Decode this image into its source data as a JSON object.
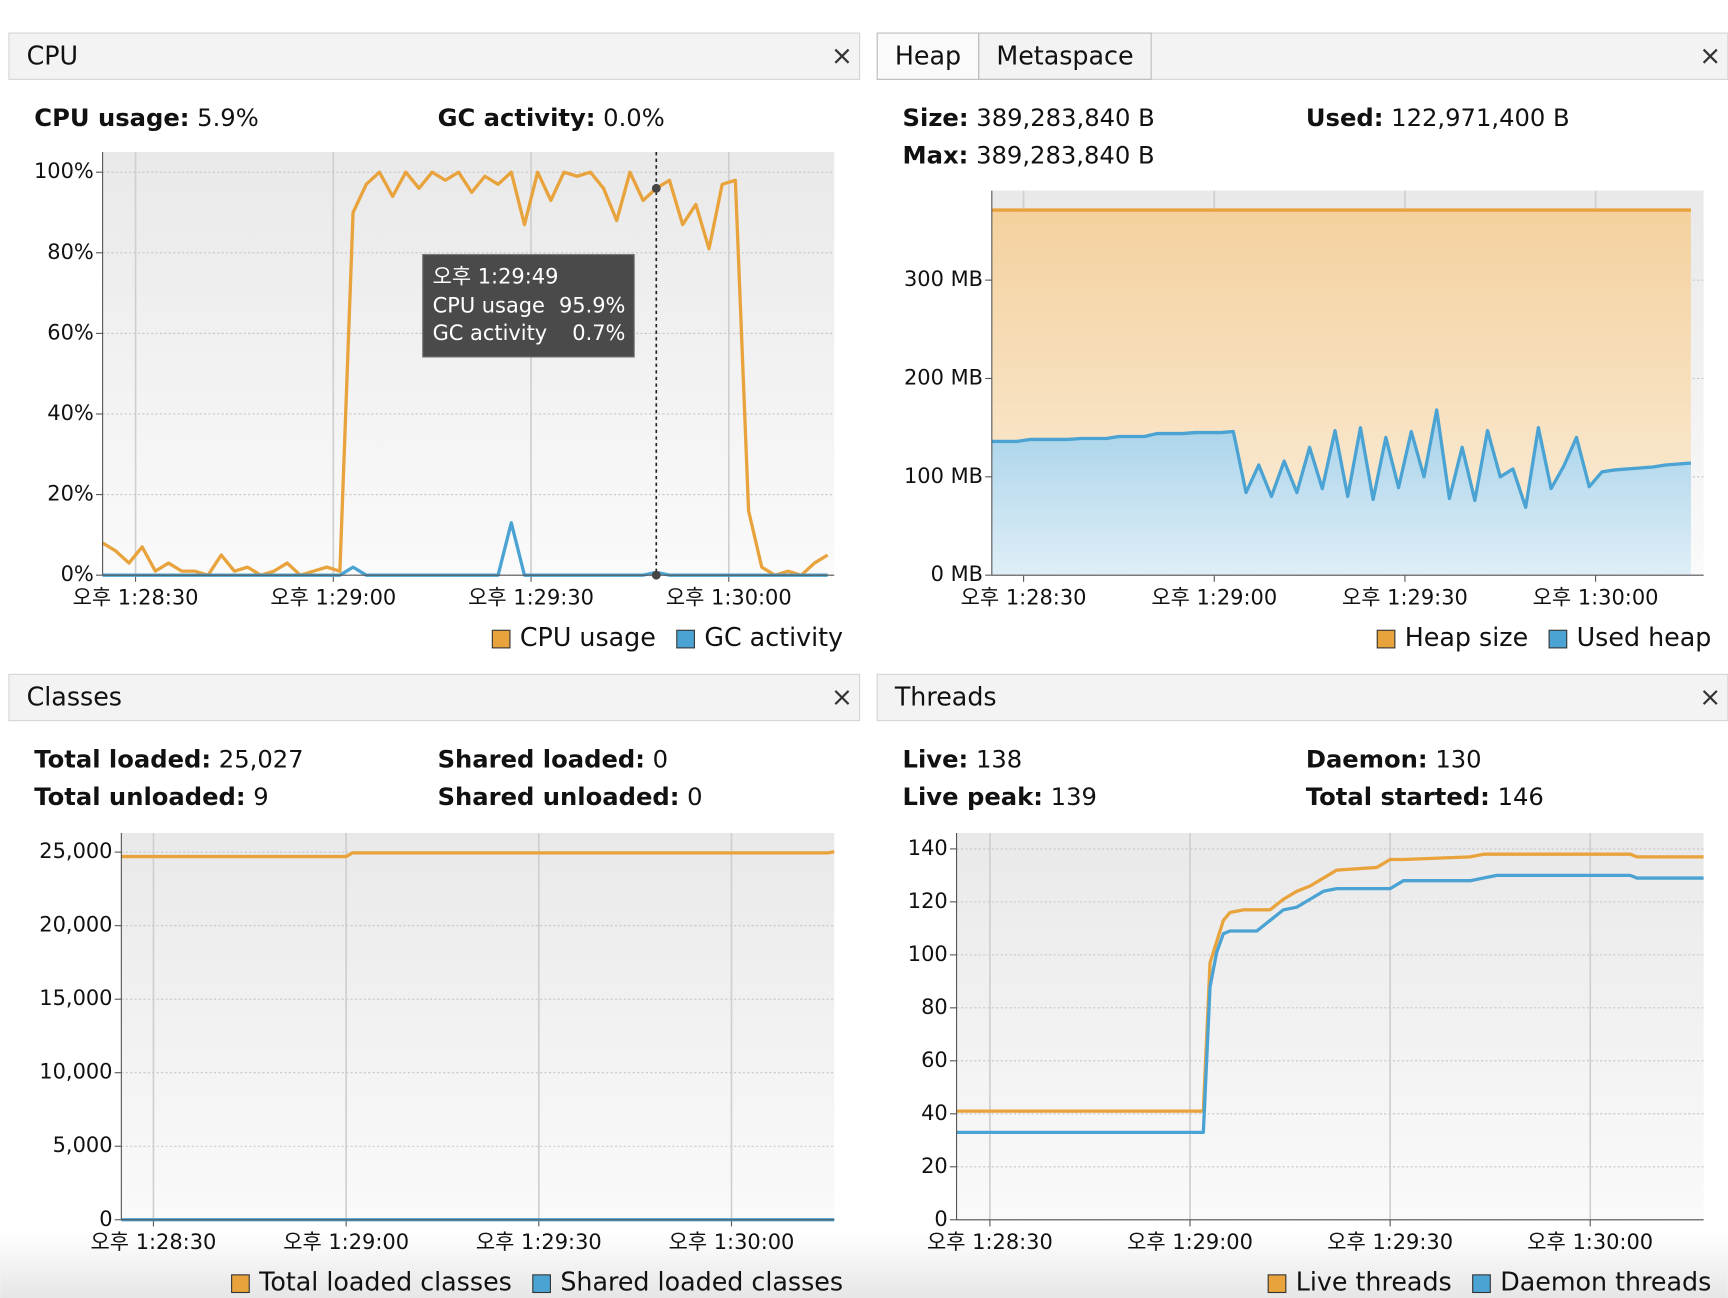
{
  "panels": [
    {
      "tabs": [
        "CPU"
      ],
      "stats": [
        [
          {
            "label": "CPU usage:",
            "value": "5.9%"
          },
          {
            "label": "GC activity:",
            "value": "0.0%"
          }
        ]
      ]
    },
    {
      "tabs": [
        "Heap",
        "Metaspace"
      ],
      "stats": [
        [
          {
            "label": "Size:",
            "value": "389,283,840 B"
          },
          {
            "label": "Used:",
            "value": "122,971,400 B"
          }
        ],
        [
          {
            "label": "Max:",
            "value": "389,283,840 B"
          }
        ]
      ]
    },
    {
      "tabs": [
        "Classes"
      ],
      "stats": [
        [
          {
            "label": "Total loaded:",
            "value": "25,027"
          },
          {
            "label": "Shared loaded:",
            "value": "0"
          }
        ],
        [
          {
            "label": "Total unloaded:",
            "value": "9"
          },
          {
            "label": "Shared unloaded:",
            "value": "0"
          }
        ]
      ]
    },
    {
      "tabs": [
        "Threads"
      ],
      "stats": [
        [
          {
            "label": "Live:",
            "value": "138"
          },
          {
            "label": "Daemon:",
            "value": "130"
          }
        ],
        [
          {
            "label": "Live peak:",
            "value": "139"
          },
          {
            "label": "Total started:",
            "value": "146"
          }
        ]
      ]
    }
  ],
  "chart_data": [
    {
      "type": "line",
      "xlim": [
        "1:28:25",
        "1:30:16"
      ],
      "ylim": [
        0,
        105
      ],
      "xticks": [
        {
          "value": "1:28:30",
          "label": "오후 1:28:30"
        },
        {
          "value": "1:29:00",
          "label": "오후 1:29:00"
        },
        {
          "value": "1:29:30",
          "label": "오후 1:29:30"
        },
        {
          "value": "1:30:00",
          "label": "오후 1:30:00"
        }
      ],
      "yticks": [
        {
          "value": 0,
          "label": "0%"
        },
        {
          "value": 20,
          "label": "20%"
        },
        {
          "value": 40,
          "label": "40%"
        },
        {
          "value": 60,
          "label": "60%"
        },
        {
          "value": 80,
          "label": "80%"
        },
        {
          "value": 100,
          "label": "100%"
        }
      ],
      "x": [
        "1:28:25",
        "1:28:27",
        "1:28:29",
        "1:28:31",
        "1:28:33",
        "1:28:35",
        "1:28:37",
        "1:28:39",
        "1:28:41",
        "1:28:43",
        "1:28:45",
        "1:28:47",
        "1:28:49",
        "1:28:51",
        "1:28:53",
        "1:28:55",
        "1:28:57",
        "1:28:59",
        "1:29:01",
        "1:29:03",
        "1:29:05",
        "1:29:07",
        "1:29:09",
        "1:29:11",
        "1:29:13",
        "1:29:15",
        "1:29:17",
        "1:29:19",
        "1:29:21",
        "1:29:23",
        "1:29:25",
        "1:29:27",
        "1:29:29",
        "1:29:31",
        "1:29:33",
        "1:29:35",
        "1:29:37",
        "1:29:39",
        "1:29:41",
        "1:29:43",
        "1:29:45",
        "1:29:47",
        "1:29:49",
        "1:29:51",
        "1:29:53",
        "1:29:55",
        "1:29:57",
        "1:29:59",
        "1:30:01",
        "1:30:03",
        "1:30:05",
        "1:30:07",
        "1:30:09",
        "1:30:11",
        "1:30:13",
        "1:30:15"
      ],
      "series": [
        {
          "name": "CPU usage",
          "color": "#e8a33d",
          "values": [
            8,
            6,
            3,
            7,
            1,
            3,
            1,
            1,
            0,
            5,
            1,
            2,
            0,
            1,
            3,
            0,
            1,
            2,
            1,
            90,
            97,
            100,
            94,
            100,
            96,
            100,
            98,
            100,
            95,
            99,
            97,
            100,
            87,
            100,
            93,
            100,
            99,
            100,
            96,
            88,
            100,
            93,
            96,
            98,
            87,
            92,
            81,
            97,
            98,
            16,
            2,
            0,
            1,
            0,
            3,
            5
          ]
        },
        {
          "name": "GC activity",
          "color": "#4ba3d3",
          "values": [
            0,
            0,
            0,
            0,
            0,
            0,
            0,
            0,
            0,
            0,
            0,
            0,
            0,
            0,
            0,
            0,
            0,
            0,
            0,
            2,
            0,
            0,
            0,
            0,
            0,
            0,
            0,
            0,
            0,
            0,
            0,
            13,
            0,
            0,
            0,
            0,
            0,
            0,
            0,
            0,
            0,
            0,
            0.7,
            0,
            0,
            0,
            0,
            0,
            0,
            0,
            0,
            0,
            0,
            0,
            0,
            0
          ]
        }
      ],
      "tooltip": {
        "time": "오후 1:29:49",
        "rows": [
          {
            "label": "CPU usage",
            "value": "95.9%"
          },
          {
            "label": "GC activity",
            "value": "0.7%"
          }
        ]
      }
    },
    {
      "type": "area",
      "xlim": [
        "1:28:25",
        "1:30:17"
      ],
      "ylim": [
        0,
        391
      ],
      "xticks": [
        {
          "value": "1:28:30",
          "label": "오후 1:28:30"
        },
        {
          "value": "1:29:00",
          "label": "오후 1:29:00"
        },
        {
          "value": "1:29:30",
          "label": "오후 1:29:30"
        },
        {
          "value": "1:30:00",
          "label": "오후 1:30:00"
        }
      ],
      "yticks": [
        {
          "value": 0,
          "label": "0 MB"
        },
        {
          "value": 100,
          "label": "100 MB"
        },
        {
          "value": 200,
          "label": "200 MB"
        },
        {
          "value": 300,
          "label": "300 MB"
        }
      ],
      "x": [
        "1:28:25",
        "1:28:27",
        "1:28:29",
        "1:28:31",
        "1:28:33",
        "1:28:35",
        "1:28:37",
        "1:28:39",
        "1:28:41",
        "1:28:43",
        "1:28:45",
        "1:28:47",
        "1:28:49",
        "1:28:51",
        "1:28:53",
        "1:28:55",
        "1:28:57",
        "1:28:59",
        "1:29:01",
        "1:29:03",
        "1:29:05",
        "1:29:07",
        "1:29:09",
        "1:29:11",
        "1:29:13",
        "1:29:15",
        "1:29:17",
        "1:29:19",
        "1:29:21",
        "1:29:23",
        "1:29:25",
        "1:29:27",
        "1:29:29",
        "1:29:31",
        "1:29:33",
        "1:29:35",
        "1:29:37",
        "1:29:39",
        "1:29:41",
        "1:29:43",
        "1:29:45",
        "1:29:47",
        "1:29:49",
        "1:29:51",
        "1:29:53",
        "1:29:55",
        "1:29:57",
        "1:29:59",
        "1:30:01",
        "1:30:03",
        "1:30:05",
        "1:30:07",
        "1:30:09",
        "1:30:11",
        "1:30:13",
        "1:30:15"
      ],
      "series": [
        {
          "name": "Heap size",
          "color": "#e8a33d",
          "values": [
            371.25,
            371.25,
            371.25,
            371.25,
            371.25,
            371.25,
            371.25,
            371.25,
            371.25,
            371.25,
            371.25,
            371.25,
            371.25,
            371.25,
            371.25,
            371.25,
            371.25,
            371.25,
            371.25,
            371.25,
            371.25,
            371.25,
            371.25,
            371.25,
            371.25,
            371.25,
            371.25,
            371.25,
            371.25,
            371.25,
            371.25,
            371.25,
            371.25,
            371.25,
            371.25,
            371.25,
            371.25,
            371.25,
            371.25,
            371.25,
            371.25,
            371.25,
            371.25,
            371.25,
            371.25,
            371.25,
            371.25,
            371.25,
            371.25,
            371.25,
            371.25,
            371.25,
            371.25,
            371.25,
            371.25,
            371.25
          ]
        },
        {
          "name": "Used heap",
          "color": "#4ba3d3",
          "values": [
            136,
            136,
            136,
            138,
            138,
            138,
            138,
            139,
            139,
            139,
            141,
            141,
            141,
            144,
            144,
            144,
            145,
            145,
            145,
            146,
            84,
            112,
            80,
            116,
            84,
            130,
            88,
            147,
            80,
            150,
            77,
            140,
            89,
            146,
            100,
            168,
            78,
            130,
            76,
            147,
            100,
            108,
            69,
            150,
            88,
            111,
            140,
            90,
            105,
            107,
            108,
            109,
            110,
            112,
            113,
            114
          ]
        }
      ]
    },
    {
      "type": "line",
      "xlim": [
        "1:28:25",
        "1:30:16"
      ],
      "ylim": [
        0,
        26300
      ],
      "xticks": [
        {
          "value": "1:28:30",
          "label": "오후 1:28:30"
        },
        {
          "value": "1:29:00",
          "label": "오후 1:29:00"
        },
        {
          "value": "1:29:30",
          "label": "오후 1:29:30"
        },
        {
          "value": "1:30:00",
          "label": "오후 1:30:00"
        }
      ],
      "yticks": [
        0,
        {
          "value": 5000,
          "label": "5,000"
        },
        {
          "value": 10000,
          "label": "10,000"
        },
        {
          "value": 15000,
          "label": "15,000"
        },
        {
          "value": 20000,
          "label": "20,000"
        },
        {
          "value": 25000,
          "label": "25,000"
        }
      ],
      "x": [
        "1:28:25",
        "1:29:00",
        "1:29:01",
        "1:30:15",
        "1:30:16"
      ],
      "series": [
        {
          "name": "Total loaded classes",
          "color": "#e8a33d",
          "values": [
            24700,
            24700,
            24950,
            24950,
            25027
          ]
        },
        {
          "name": "Shared loaded classes",
          "color": "#4ba3d3",
          "values": [
            0,
            0,
            0,
            0,
            0
          ]
        }
      ]
    },
    {
      "type": "line",
      "xlim": [
        "1:28:25",
        "1:30:17"
      ],
      "ylim": [
        0,
        146
      ],
      "xticks": [
        {
          "value": "1:28:30",
          "label": "오후 1:28:30"
        },
        {
          "value": "1:29:00",
          "label": "오후 1:29:00"
        },
        {
          "value": "1:29:30",
          "label": "오후 1:29:30"
        },
        {
          "value": "1:30:00",
          "label": "오후 1:30:00"
        }
      ],
      "yticks": [
        0,
        20,
        40,
        60,
        80,
        100,
        120,
        140
      ],
      "x": [
        "1:28:25",
        "1:29:01",
        "1:29:02",
        "1:29:03",
        "1:29:04",
        "1:29:05",
        "1:29:06",
        "1:29:08",
        "1:29:10",
        "1:29:12",
        "1:29:14",
        "1:29:16",
        "1:29:18",
        "1:29:20",
        "1:29:22",
        "1:29:28",
        "1:29:30",
        "1:29:32",
        "1:29:42",
        "1:29:44",
        "1:29:46",
        "1:30:06",
        "1:30:07",
        "1:30:17"
      ],
      "series": [
        {
          "name": "Live threads",
          "color": "#e8a33d",
          "values": [
            41,
            41,
            41,
            97,
            105,
            113,
            116,
            117,
            117,
            117,
            121,
            124,
            126,
            129,
            132,
            133,
            136,
            136,
            137,
            138,
            138,
            138,
            137,
            137
          ]
        },
        {
          "name": "Daemon threads",
          "color": "#4ba3d3",
          "values": [
            33,
            33,
            33,
            88,
            101,
            108,
            109,
            109,
            109,
            113,
            117,
            118,
            121,
            124,
            125,
            125,
            125,
            128,
            128,
            129,
            130,
            130,
            129,
            129
          ]
        }
      ]
    }
  ]
}
